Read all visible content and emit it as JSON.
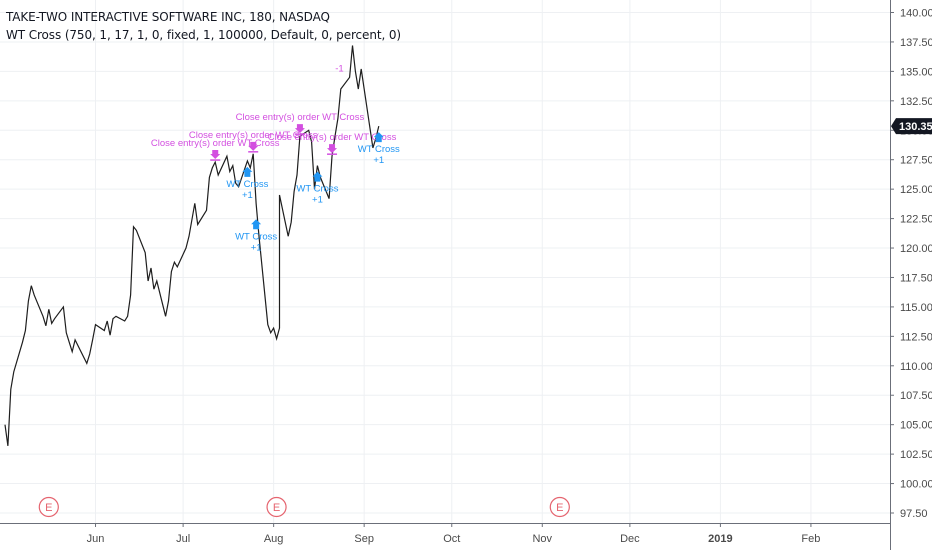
{
  "header": {
    "title": "TAKE-TWO INTERACTIVE SOFTWARE INC, 180, NASDAQ",
    "indicator": "WT Cross (750, 1, 17, 1, 0, fixed, 1, 100000, Default, 0, percent, 0)"
  },
  "colors": {
    "price": "#1e1e1e",
    "buy": "#2196f3",
    "close": "#d34fe0",
    "earnings": "#e5646f",
    "grid": "#eef0f3",
    "axis": "#6b6f79"
  },
  "chart_data": {
    "type": "line",
    "title": "TAKE-TWO INTERACTIVE SOFTWARE INC, 180, NASDAQ",
    "xlabel": "",
    "ylabel": "",
    "ylim": [
      97.5,
      140.0
    ],
    "y_ticks": [
      "140.00",
      "137.50",
      "135.00",
      "132.50",
      "130.00",
      "127.50",
      "125.00",
      "122.50",
      "120.00",
      "117.50",
      "115.00",
      "112.50",
      "110.00",
      "107.50",
      "105.00",
      "102.50",
      "100.00",
      "97.50"
    ],
    "x_ticks": [
      "Jun",
      "Jul",
      "Aug",
      "Sep",
      "Oct",
      "Nov",
      "Dec",
      "2019",
      "Feb"
    ],
    "last_price": "130.35",
    "series": [
      {
        "values": [
          {
            "x": "2018-05-01",
            "y": 105.0
          },
          {
            "x": "2018-05-02",
            "y": 103.2
          },
          {
            "x": "2018-05-03",
            "y": 108.0
          },
          {
            "x": "2018-05-04",
            "y": 109.5
          },
          {
            "x": "2018-05-07",
            "y": 112.0
          },
          {
            "x": "2018-05-08",
            "y": 113.0
          },
          {
            "x": "2018-05-09",
            "y": 115.5
          },
          {
            "x": "2018-05-10",
            "y": 116.8
          },
          {
            "x": "2018-05-11",
            "y": 116.0
          },
          {
            "x": "2018-05-14",
            "y": 114.2
          },
          {
            "x": "2018-05-15",
            "y": 113.4
          },
          {
            "x": "2018-05-16",
            "y": 114.8
          },
          {
            "x": "2018-05-17",
            "y": 113.6
          },
          {
            "x": "2018-05-18",
            "y": 114.0
          },
          {
            "x": "2018-05-21",
            "y": 115.0
          },
          {
            "x": "2018-05-22",
            "y": 112.8
          },
          {
            "x": "2018-05-23",
            "y": 112.0
          },
          {
            "x": "2018-05-24",
            "y": 111.2
          },
          {
            "x": "2018-05-25",
            "y": 112.2
          },
          {
            "x": "2018-05-29",
            "y": 110.2
          },
          {
            "x": "2018-05-30",
            "y": 111.0
          },
          {
            "x": "2018-05-31",
            "y": 112.2
          },
          {
            "x": "2018-06-01",
            "y": 113.5
          },
          {
            "x": "2018-06-04",
            "y": 113.0
          },
          {
            "x": "2018-06-05",
            "y": 113.8
          },
          {
            "x": "2018-06-06",
            "y": 112.6
          },
          {
            "x": "2018-06-07",
            "y": 114.0
          },
          {
            "x": "2018-06-08",
            "y": 114.2
          },
          {
            "x": "2018-06-11",
            "y": 113.8
          },
          {
            "x": "2018-06-12",
            "y": 114.2
          },
          {
            "x": "2018-06-13",
            "y": 116.0
          },
          {
            "x": "2018-06-14",
            "y": 121.8
          },
          {
            "x": "2018-06-15",
            "y": 121.5
          },
          {
            "x": "2018-06-18",
            "y": 119.6
          },
          {
            "x": "2018-06-19",
            "y": 117.2
          },
          {
            "x": "2018-06-20",
            "y": 118.3
          },
          {
            "x": "2018-06-21",
            "y": 116.5
          },
          {
            "x": "2018-06-22",
            "y": 117.2
          },
          {
            "x": "2018-06-25",
            "y": 114.2
          },
          {
            "x": "2018-06-26",
            "y": 115.5
          },
          {
            "x": "2018-06-27",
            "y": 118.0
          },
          {
            "x": "2018-06-28",
            "y": 118.8
          },
          {
            "x": "2018-06-29",
            "y": 118.4
          },
          {
            "x": "2018-07-02",
            "y": 120.0
          },
          {
            "x": "2018-07-03",
            "y": 121.0
          },
          {
            "x": "2018-07-05",
            "y": 123.8
          },
          {
            "x": "2018-07-06",
            "y": 122.0
          },
          {
            "x": "2018-07-09",
            "y": 123.2
          },
          {
            "x": "2018-07-10",
            "y": 126.0
          },
          {
            "x": "2018-07-11",
            "y": 126.8
          },
          {
            "x": "2018-07-12",
            "y": 127.3
          },
          {
            "x": "2018-07-13",
            "y": 126.2
          },
          {
            "x": "2018-07-16",
            "y": 127.8
          },
          {
            "x": "2018-07-17",
            "y": 126.5
          },
          {
            "x": "2018-07-18",
            "y": 127.0
          },
          {
            "x": "2018-07-19",
            "y": 125.5
          },
          {
            "x": "2018-07-20",
            "y": 125.2
          },
          {
            "x": "2018-07-23",
            "y": 127.4
          },
          {
            "x": "2018-07-24",
            "y": 126.8
          },
          {
            "x": "2018-07-25",
            "y": 128.0
          },
          {
            "x": "2018-07-26",
            "y": 123.8
          },
          {
            "x": "2018-07-27",
            "y": 121.0
          },
          {
            "x": "2018-07-30",
            "y": 113.5
          },
          {
            "x": "2018-07-31",
            "y": 112.8
          },
          {
            "x": "2018-08-01",
            "y": 113.2
          },
          {
            "x": "2018-08-02",
            "y": 112.3
          },
          {
            "x": "2018-08-03",
            "y": 113.2
          },
          {
            "x": "2018-08-03",
            "y": 124.5
          },
          {
            "x": "2018-08-06",
            "y": 121.0
          },
          {
            "x": "2018-08-07",
            "y": 122.2
          },
          {
            "x": "2018-08-08",
            "y": 124.8
          },
          {
            "x": "2018-08-09",
            "y": 126.2
          },
          {
            "x": "2018-08-10",
            "y": 129.5
          },
          {
            "x": "2018-08-13",
            "y": 130.0
          },
          {
            "x": "2018-08-14",
            "y": 129.0
          },
          {
            "x": "2018-08-15",
            "y": 125.0
          },
          {
            "x": "2018-08-16",
            "y": 127.0
          },
          {
            "x": "2018-08-17",
            "y": 126.0
          },
          {
            "x": "2018-08-20",
            "y": 124.2
          },
          {
            "x": "2018-08-21",
            "y": 127.8
          },
          {
            "x": "2018-08-22",
            "y": 129.5
          },
          {
            "x": "2018-08-23",
            "y": 131.0
          },
          {
            "x": "2018-08-24",
            "y": 133.5
          },
          {
            "x": "2018-08-27",
            "y": 134.5
          },
          {
            "x": "2018-08-28",
            "y": 137.2
          },
          {
            "x": "2018-08-29",
            "y": 135.0
          },
          {
            "x": "2018-08-30",
            "y": 133.5
          },
          {
            "x": "2018-08-31",
            "y": 135.2
          },
          {
            "x": "2018-09-04",
            "y": 128.5
          },
          {
            "x": "2018-09-05",
            "y": 129.3
          },
          {
            "x": "2018-09-06",
            "y": 130.35
          }
        ]
      }
    ],
    "signals": [
      {
        "kind": "close",
        "date": "2018-07-12",
        "text": "Close entry(s) order WT Cross",
        "level": 1
      },
      {
        "kind": "close",
        "date": "2018-07-25",
        "text": "Close entry(s) order WT Cross",
        "level": 2
      },
      {
        "kind": "buy",
        "date": "2018-07-23",
        "text": "WT Cross",
        "qty": "+1",
        "level": 1
      },
      {
        "kind": "buy",
        "date": "2018-07-26",
        "text": "WT Cross",
        "qty": "+1",
        "level": 2
      },
      {
        "kind": "close",
        "date": "2018-08-10",
        "text": "Close entry(s) order WT Cross",
        "level": 3
      },
      {
        "kind": "close",
        "date": "2018-08-21",
        "text": "Close entry(s) order WT Cross",
        "level": 4
      },
      {
        "kind": "buy",
        "date": "2018-08-16",
        "text": "WT Cross",
        "qty": "+1",
        "level": 1
      },
      {
        "kind": "buy",
        "date": "2018-09-06",
        "text": "WT Cross",
        "qty": "+1",
        "level": 1
      }
    ],
    "earnings": [
      {
        "date": "2018-05-16",
        "label": "E"
      },
      {
        "date": "2018-08-02",
        "label": "E"
      },
      {
        "date": "2018-11-07",
        "label": "E"
      }
    ],
    "last_price_label": "130.35",
    "misc": {
      "extra_close_label": "-1"
    }
  }
}
